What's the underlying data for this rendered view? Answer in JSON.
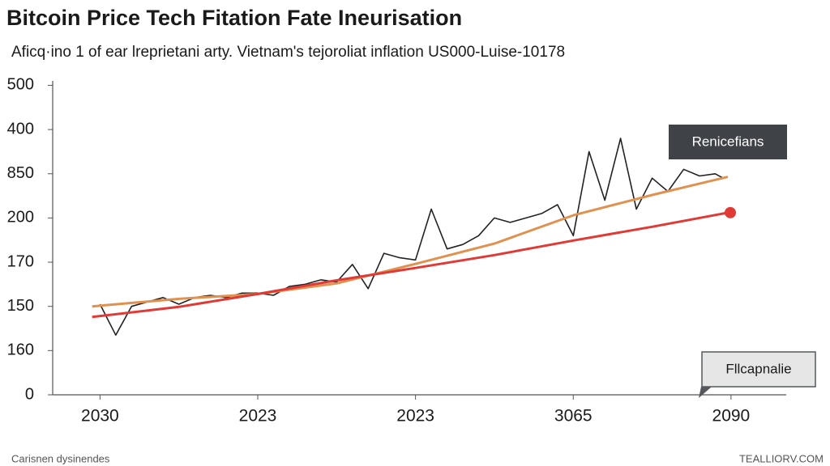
{
  "chart_data": {
    "type": "line",
    "title": "Bitcoin Price Tech Fitation Fate Ineurisation",
    "subtitle": "Aficq·ino 1 of ear lreprietani arty. Vietnam's tejoroliat inflation US000-Luise-10178",
    "xlim": [
      -0.3,
      4.35
    ],
    "xticks": [
      {
        "value": 0,
        "label": "2030"
      },
      {
        "value": 1,
        "label": "2023"
      },
      {
        "value": 2,
        "label": "2023"
      },
      {
        "value": 3,
        "label": "3065"
      },
      {
        "value": 4,
        "label": "2090"
      }
    ],
    "ylim": [
      0,
      7.1
    ],
    "yticks": [
      {
        "value": 0,
        "label": "0"
      },
      {
        "value": 1,
        "label": "160"
      },
      {
        "value": 2,
        "label": "150"
      },
      {
        "value": 3,
        "label": "170"
      },
      {
        "value": 4,
        "label": "200"
      },
      {
        "value": 5,
        "label": "850"
      },
      {
        "value": 6,
        "label": "400"
      },
      {
        "value": 7,
        "label": "500"
      }
    ],
    "series": [
      {
        "color": "#222222",
        "x": [
          0,
          0.1,
          0.2,
          0.3,
          0.4,
          0.5,
          0.6,
          0.7,
          0.8,
          0.9,
          1.0,
          1.1,
          1.2,
          1.3,
          1.4,
          1.5,
          1.6,
          1.7,
          1.8,
          1.9,
          2.0,
          2.1,
          2.2,
          2.3,
          2.4,
          2.5,
          2.6,
          2.7,
          2.8,
          2.9,
          3.0,
          3.1,
          3.2,
          3.3,
          3.4,
          3.5,
          3.6,
          3.7,
          3.8,
          3.9,
          3.95
        ],
        "values": [
          2.05,
          1.35,
          2.0,
          2.1,
          2.2,
          2.05,
          2.2,
          2.25,
          2.2,
          2.3,
          2.3,
          2.25,
          2.45,
          2.5,
          2.6,
          2.55,
          2.95,
          2.4,
          3.2,
          3.1,
          3.05,
          4.2,
          3.3,
          3.4,
          3.6,
          4.0,
          3.9,
          4.0,
          4.1,
          4.3,
          3.6,
          5.5,
          4.4,
          5.8,
          4.2,
          4.9,
          4.6,
          5.1,
          4.95,
          5.0,
          4.9
        ]
      },
      {
        "color": "#e0914f",
        "x": [
          -0.05,
          0.5,
          1,
          1.5,
          2,
          2.5,
          3,
          3.5,
          3.98
        ],
        "values": [
          2.0,
          2.17,
          2.28,
          2.52,
          2.96,
          3.42,
          4.06,
          4.52,
          4.93
        ]
      },
      {
        "color": "#e03a36",
        "x": [
          -0.05,
          0.5,
          1,
          1.5,
          2,
          2.5,
          3,
          3.5,
          3.98
        ],
        "values": [
          1.76,
          1.99,
          2.28,
          2.59,
          2.87,
          3.16,
          3.49,
          3.8,
          4.12
        ]
      }
    ],
    "annotations": [
      "Renicefians",
      "Fllcapnalie"
    ],
    "footer_left": "Carisnen dysinendes",
    "footer_right": "TEALLIORV.COM"
  }
}
